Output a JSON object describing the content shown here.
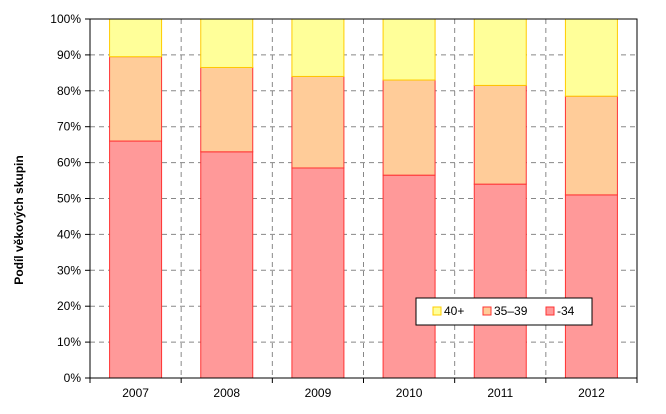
{
  "chart_data": {
    "type": "bar",
    "stacked": true,
    "normalized": true,
    "categories": [
      "2007",
      "2008",
      "2009",
      "2010",
      "2011",
      "2012"
    ],
    "series": [
      {
        "name": "-34",
        "color": "#ff9999",
        "edge": "#ff3333",
        "values": [
          66,
          63,
          58.5,
          56.5,
          54,
          51
        ]
      },
      {
        "name": "35–39",
        "color": "#ffcc99",
        "edge": "#ff3333",
        "values": [
          23.5,
          23.5,
          25.5,
          26.5,
          27.5,
          27.5
        ]
      },
      {
        "name": "40+",
        "color": "#ffff99",
        "edge": "#ffcc00",
        "values": [
          10.5,
          13.5,
          16,
          17,
          18.5,
          21.5
        ]
      }
    ],
    "ylabel": "Podíl věkových skupin",
    "xlabel": "",
    "ylim": [
      0,
      100
    ],
    "yticks": [
      "0%",
      "10%",
      "20%",
      "30%",
      "40%",
      "50%",
      "60%",
      "70%",
      "80%",
      "90%",
      "100%"
    ],
    "grid": {
      "horizontal": true,
      "vertical": true,
      "style": "dashed"
    },
    "legend": {
      "placement": "bottom-right",
      "order": [
        "40+",
        "35–39",
        "-34"
      ]
    }
  }
}
